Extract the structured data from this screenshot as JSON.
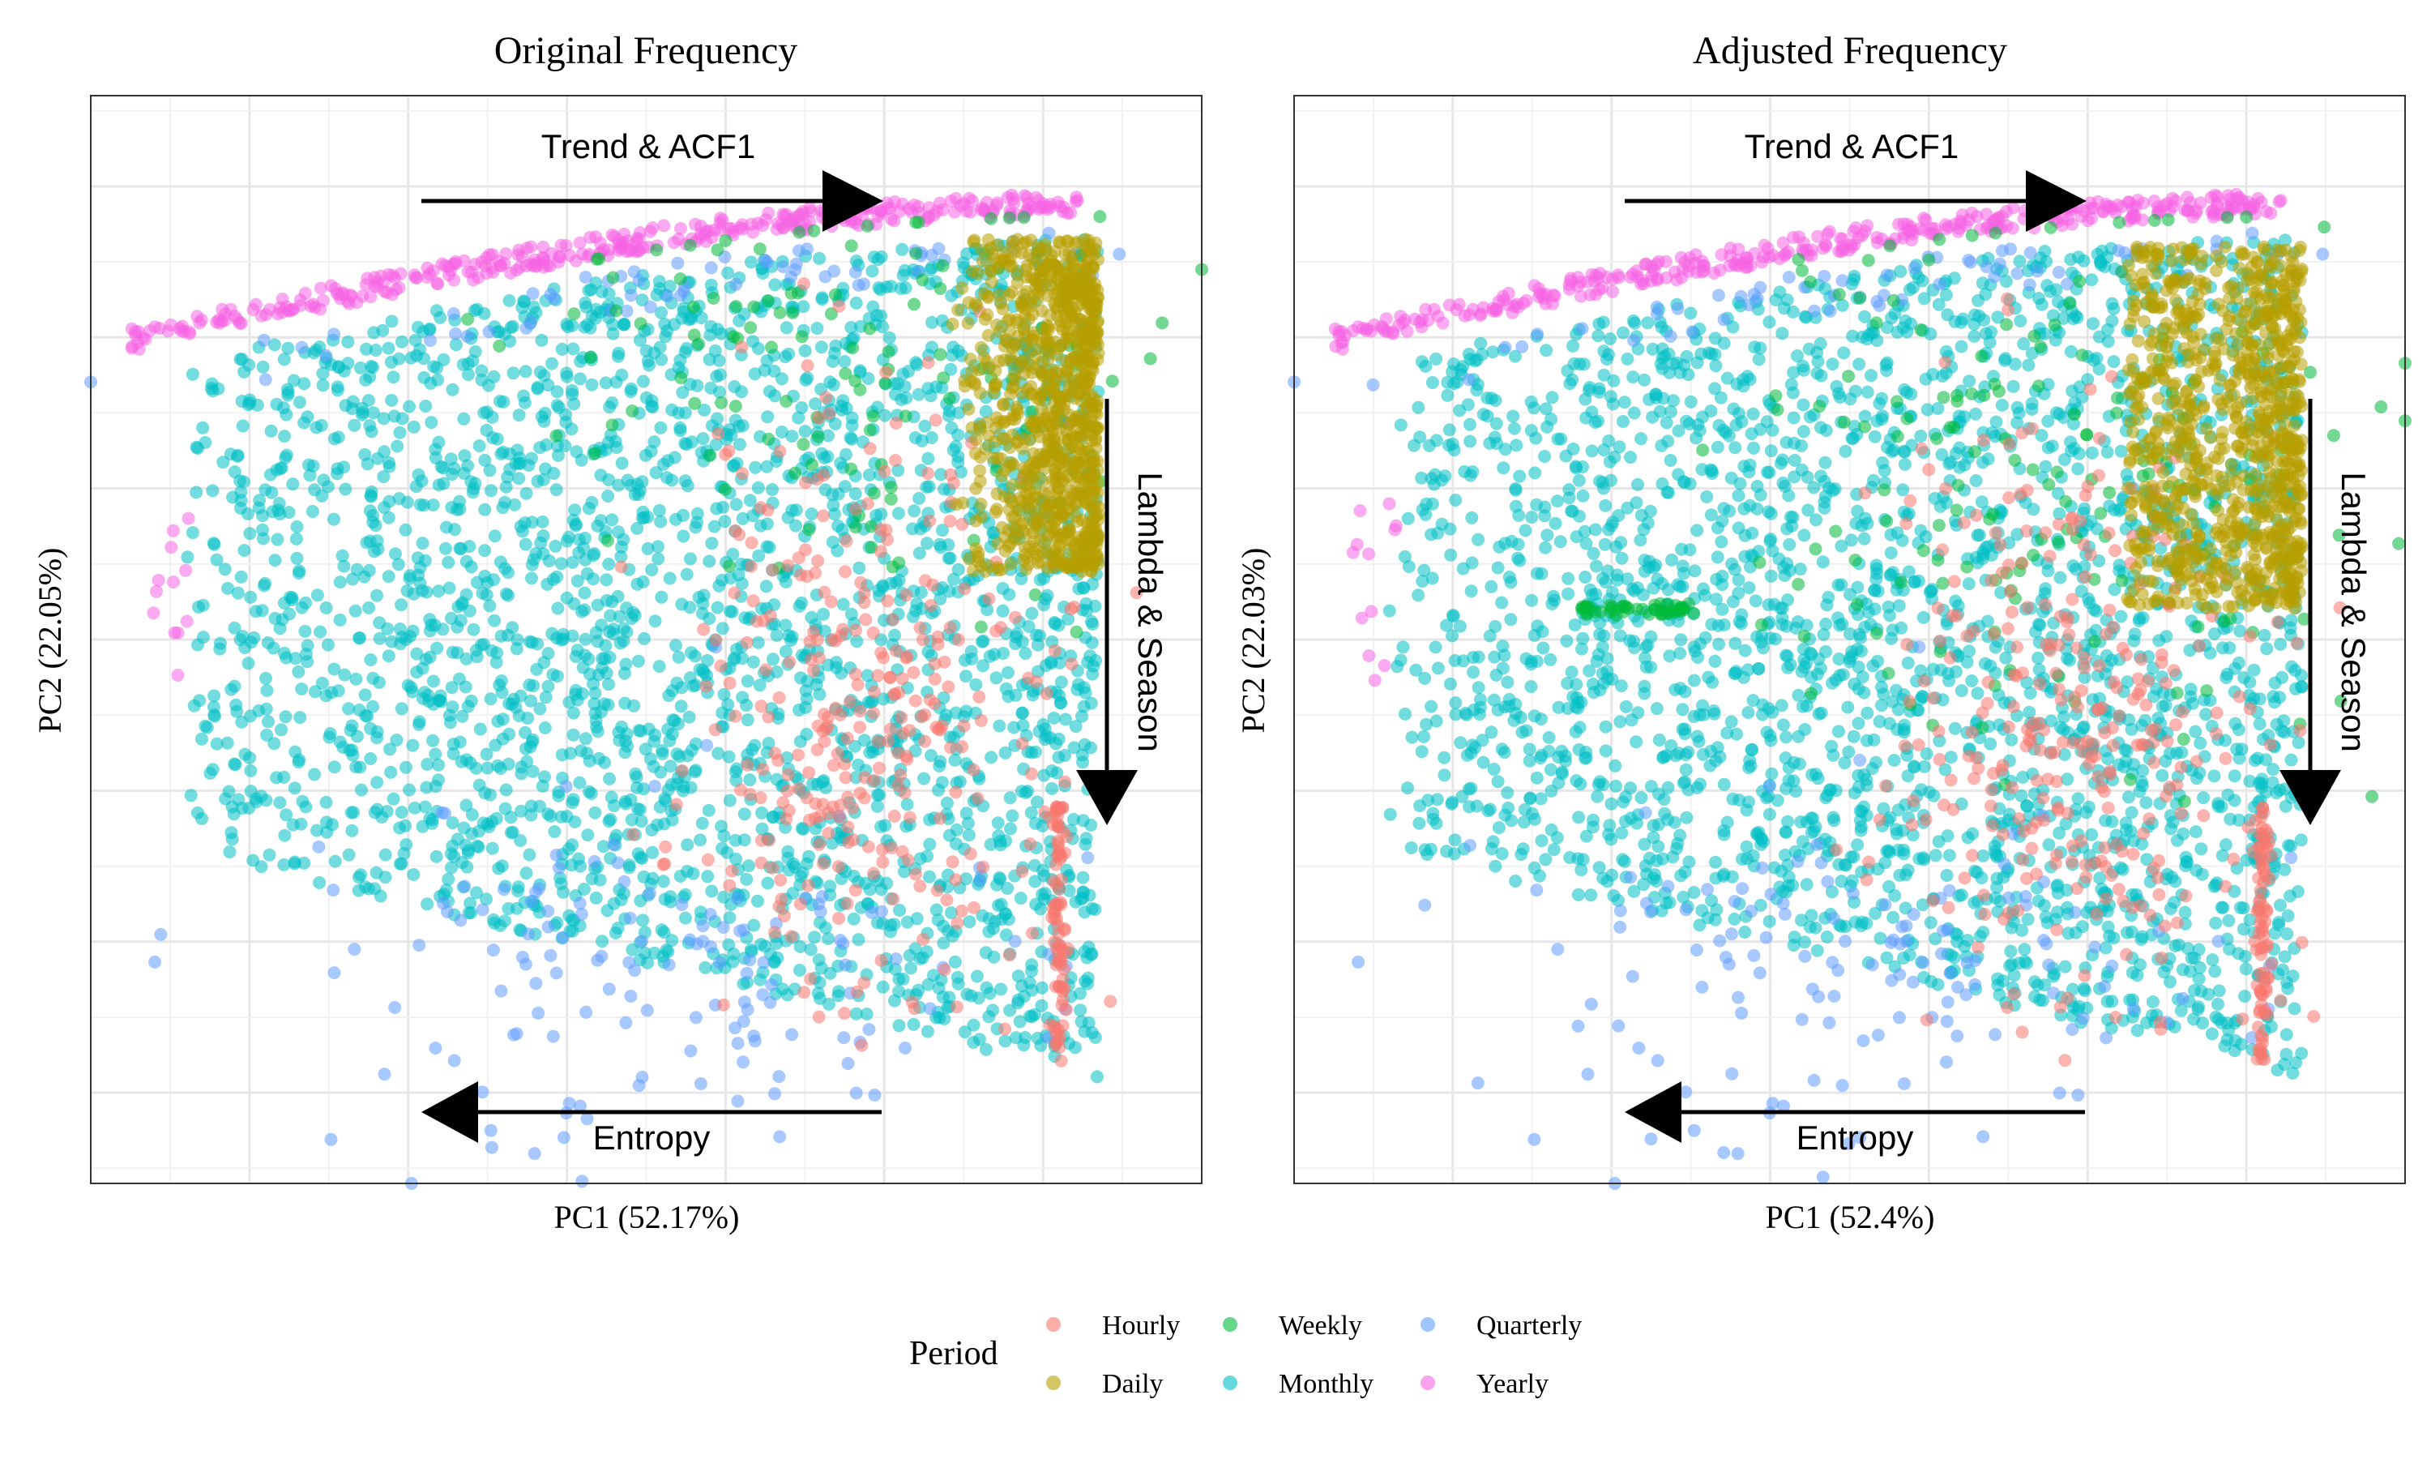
{
  "chart_data": [
    {
      "type": "scatter",
      "title": "Original Frequency",
      "xlabel": "PC1 (52.17%)",
      "ylabel": "PC2 (22.05%)",
      "grid": true,
      "annotations": [
        {
          "text": "Trend & ACF1",
          "direction": "right"
        },
        {
          "text": "Lambda & Season",
          "direction": "down"
        },
        {
          "text": "Entropy",
          "direction": "left"
        }
      ],
      "series": [
        {
          "name": "Monthly",
          "x_range": [
            -9.3,
            2.7
          ],
          "y_range": [
            -3.0,
            2.8
          ]
        },
        {
          "name": "Daily",
          "x_range": [
            0.6,
            2.7
          ],
          "y_range": [
            0.4,
            2.7
          ]
        },
        {
          "name": "Hourly",
          "x_range": [
            -3.2,
            2.4
          ],
          "y_range": [
            -2.8,
            0.8
          ]
        },
        {
          "name": "Weekly",
          "x_range": [
            -4.5,
            2.6
          ],
          "y_range": [
            -1.0,
            2.8
          ]
        },
        {
          "name": "Quarterly",
          "x_range": [
            -6.0,
            2.6
          ],
          "y_range": [
            -3.0,
            2.8
          ]
        },
        {
          "name": "Yearly",
          "x_range": [
            -9.5,
            2.5
          ],
          "y_range": [
            1.9,
            2.9
          ]
        }
      ]
    },
    {
      "type": "scatter",
      "title": "Adjusted Frequency",
      "xlabel": "PC1 (52.4%)",
      "ylabel": "PC2 (22.03%)",
      "grid": true,
      "annotations": [
        {
          "text": "Trend & ACF1",
          "direction": "right"
        },
        {
          "text": "Lambda & Season",
          "direction": "down"
        },
        {
          "text": "Entropy",
          "direction": "left"
        }
      ],
      "series": [
        {
          "name": "Monthly",
          "x_range": [
            -9.3,
            2.7
          ],
          "y_range": [
            -3.0,
            2.8
          ]
        },
        {
          "name": "Daily",
          "x_range": [
            0.6,
            2.7
          ],
          "y_range": [
            0.2,
            2.7
          ]
        },
        {
          "name": "Hourly",
          "x_range": [
            -3.2,
            2.4
          ],
          "y_range": [
            -2.8,
            0.6
          ]
        },
        {
          "name": "Weekly",
          "x_range": [
            -6.5,
            2.6
          ],
          "y_range": [
            -1.0,
            2.8
          ]
        },
        {
          "name": "Quarterly",
          "x_range": [
            -6.0,
            2.6
          ],
          "y_range": [
            -3.0,
            2.8
          ]
        },
        {
          "name": "Yearly",
          "x_range": [
            -9.5,
            2.5
          ],
          "y_range": [
            1.9,
            2.9
          ]
        }
      ]
    }
  ],
  "legend": {
    "title": "Period",
    "placement": "bottom",
    "items": [
      {
        "label": "Hourly",
        "color": "#F8766D"
      },
      {
        "label": "Daily",
        "color": "#B79F00"
      },
      {
        "label": "Weekly",
        "color": "#00BA38"
      },
      {
        "label": "Monthly",
        "color": "#00BFC4"
      },
      {
        "label": "Quarterly",
        "color": "#619CFF"
      },
      {
        "label": "Yearly",
        "color": "#F564E3"
      }
    ]
  }
}
